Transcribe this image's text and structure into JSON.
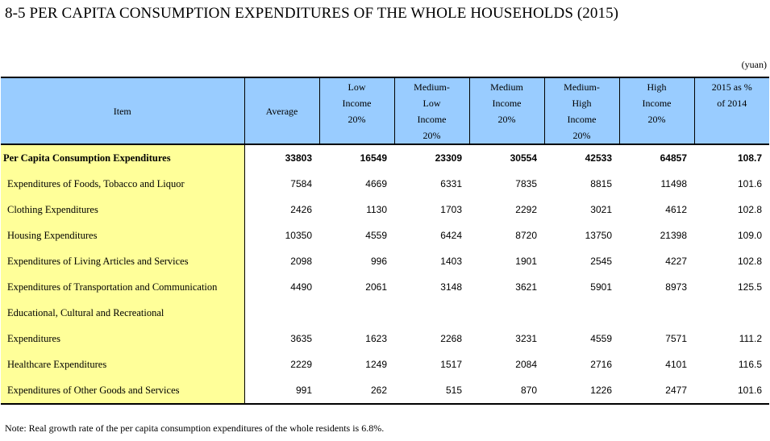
{
  "title": "8-5  PER CAPITA CONSUMPTION EXPENDITURES OF THE WHOLE HOUSEHOLDS (2015)",
  "unit": "(yuan)",
  "headers": {
    "item": "Item",
    "average": "Average",
    "low": [
      "Low",
      "Income",
      "20%"
    ],
    "medium_low": [
      "Medium-",
      "Low",
      "Income",
      "20%"
    ],
    "medium": [
      "Medium",
      "Income",
      "20%"
    ],
    "medium_high": [
      "Medium-",
      "High",
      "Income",
      "20%"
    ],
    "high": [
      "High",
      "Income",
      "20%"
    ],
    "pct": [
      "2015 as %",
      "of 2014"
    ]
  },
  "rows": [
    {
      "item": "Per Capita Consumption Expenditures",
      "values": [
        "33803",
        "16549",
        "23309",
        "30554",
        "42533",
        "64857",
        "108.7"
      ]
    },
    {
      "item": "Expenditures of Foods, Tobacco and Liquor",
      "values": [
        "7584",
        "4669",
        "6331",
        "7835",
        "8815",
        "11498",
        "101.6"
      ]
    },
    {
      "item": "Clothing Expenditures",
      "values": [
        "2426",
        "1130",
        "1703",
        "2292",
        "3021",
        "4612",
        "102.8"
      ]
    },
    {
      "item": "Housing Expenditures",
      "values": [
        "10350",
        "4559",
        "6424",
        "8720",
        "13750",
        "21398",
        "109.0"
      ]
    },
    {
      "item": "Expenditures of Living Articles and Services",
      "values": [
        "2098",
        "996",
        "1403",
        "1901",
        "2545",
        "4227",
        "102.8"
      ]
    },
    {
      "item": "Expenditures of Transportation and Communication",
      "values": [
        "4490",
        "2061",
        "3148",
        "3621",
        "5901",
        "8973",
        "125.5"
      ]
    },
    {
      "item": "Educational, Cultural and Recreational",
      "values": [
        "",
        "",
        "",
        "",
        "",
        "",
        ""
      ]
    },
    {
      "item": "Expenditures",
      "values": [
        "3635",
        "1623",
        "2268",
        "3231",
        "4559",
        "7571",
        "111.2"
      ]
    },
    {
      "item": "Healthcare Expenditures",
      "values": [
        "2229",
        "1249",
        "1517",
        "2084",
        "2716",
        "4101",
        "116.5"
      ]
    },
    {
      "item": "Expenditures of Other Goods and Services",
      "values": [
        "991",
        "262",
        "515",
        "870",
        "1226",
        "2477",
        "101.6"
      ]
    }
  ],
  "note": "Note: Real growth rate of the per capita consumption expenditures of  the whole  residents is 6.8%."
}
